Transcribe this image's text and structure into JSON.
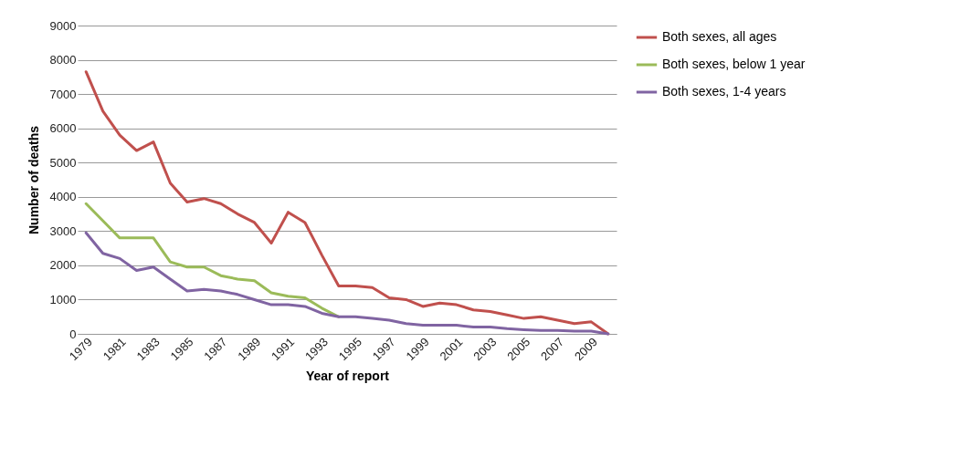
{
  "chart_data": {
    "type": "line",
    "xlabel": "Year of report",
    "ylabel": "Number of deaths",
    "categories": [
      "1979",
      null,
      "1981",
      null,
      "1983",
      null,
      "1985",
      null,
      "1987",
      null,
      "1989",
      null,
      "1991",
      null,
      "1993",
      null,
      "1995",
      null,
      "1997",
      null,
      "1999",
      null,
      "2001",
      null,
      "2003",
      null,
      "2005",
      null,
      "2007",
      null,
      "2009",
      null
    ],
    "series": [
      {
        "name": "Both sexes, all ages",
        "color": "#c0504d",
        "values": [
          7650,
          6500,
          5800,
          5350,
          5600,
          4400,
          3850,
          3950,
          3800,
          3500,
          3250,
          2650,
          3550,
          3250,
          2300,
          1400,
          1400,
          1350,
          1050,
          1000,
          800,
          900,
          850,
          700,
          650,
          550,
          450,
          500,
          400,
          300,
          350,
          0
        ]
      },
      {
        "name": "Both sexes, below 1 year",
        "color": "#9bbb59",
        "values": [
          3800,
          3300,
          2800,
          2800,
          2800,
          2100,
          1950,
          1950,
          1700,
          1600,
          1550,
          1200,
          1100,
          1050,
          750,
          500,
          null,
          null,
          null,
          null,
          null,
          null,
          null,
          null,
          null,
          null,
          null,
          null,
          null,
          null,
          null,
          null
        ]
      },
      {
        "name": "Both sexes, 1-4 years",
        "color": "#8064a2",
        "values": [
          2950,
          2350,
          2200,
          1850,
          1950,
          1600,
          1250,
          1300,
          1250,
          1150,
          1000,
          850,
          850,
          800,
          600,
          500,
          500,
          450,
          400,
          300,
          250,
          250,
          250,
          200,
          200,
          150,
          120,
          100,
          100,
          80,
          80,
          0
        ]
      }
    ],
    "ylim": [
      0,
      9000
    ],
    "yticks": [
      0,
      1000,
      2000,
      3000,
      4000,
      5000,
      6000,
      7000,
      8000,
      9000
    ],
    "grid": "y",
    "legend": "right"
  }
}
